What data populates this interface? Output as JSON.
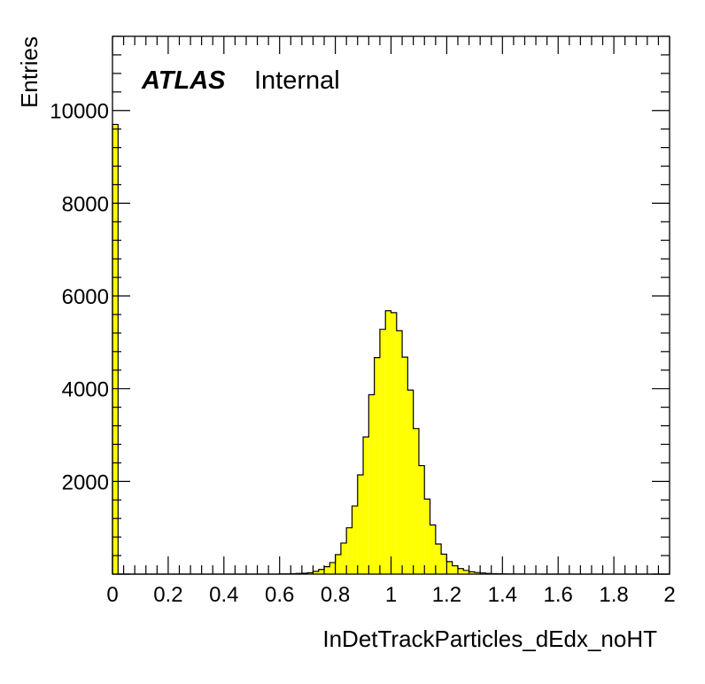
{
  "chart_data": {
    "type": "bar",
    "subtype": "histogram",
    "xlabel": "InDetTrackParticles_dEdx_noHT",
    "ylabel": "Entries",
    "experiment_label": "ATLAS",
    "status_label": "Internal",
    "xlim": [
      0,
      2
    ],
    "ylim": [
      0,
      11600
    ],
    "log_scale": false,
    "grid": false,
    "legend": "none",
    "bin_width": 0.02,
    "x_ticks": [
      0,
      0.2,
      0.4,
      0.6,
      0.8,
      1,
      1.2,
      1.4,
      1.6,
      1.8,
      2
    ],
    "x_tick_labels": [
      "0",
      "0.2",
      "0.4",
      "0.6",
      "0.8",
      "1",
      "1.2",
      "1.4",
      "1.6",
      "1.8",
      "2"
    ],
    "y_ticks": [
      2000,
      4000,
      6000,
      8000,
      10000
    ],
    "y_tick_labels": [
      "2000",
      "4000",
      "6000",
      "8000",
      "10000"
    ],
    "fill_color": "#ffff00",
    "line_color": "#000000",
    "bin_edges_low": [
      0.0,
      0.02,
      0.04,
      0.06,
      0.08,
      0.1,
      0.12,
      0.14,
      0.16,
      0.18,
      0.2,
      0.22,
      0.24,
      0.26,
      0.28,
      0.3,
      0.32,
      0.34,
      0.36,
      0.38,
      0.4,
      0.42,
      0.44,
      0.46,
      0.48,
      0.5,
      0.52,
      0.54,
      0.56,
      0.58,
      0.6,
      0.62,
      0.64,
      0.66,
      0.68,
      0.7,
      0.72,
      0.74,
      0.76,
      0.78,
      0.8,
      0.82,
      0.84,
      0.86,
      0.88,
      0.9,
      0.92,
      0.94,
      0.96,
      0.98,
      1.0,
      1.02,
      1.04,
      1.06,
      1.08,
      1.1,
      1.12,
      1.14,
      1.16,
      1.18,
      1.2,
      1.22,
      1.24,
      1.26,
      1.28,
      1.3,
      1.32,
      1.34,
      1.36,
      1.38,
      1.4,
      1.42,
      1.44,
      1.46,
      1.48,
      1.5,
      1.52,
      1.54,
      1.56,
      1.58,
      1.6,
      1.62,
      1.64,
      1.66,
      1.68,
      1.7,
      1.72,
      1.74,
      1.76,
      1.78,
      1.8,
      1.82,
      1.84,
      1.86,
      1.88,
      1.9,
      1.92,
      1.94,
      1.96,
      1.98
    ],
    "values": [
      9700,
      0,
      0,
      0,
      0,
      0,
      0,
      0,
      0,
      0,
      0,
      0,
      0,
      0,
      0,
      0,
      0,
      0,
      0,
      0,
      0,
      0,
      0,
      0,
      0,
      0,
      0,
      0,
      0,
      0,
      5,
      5,
      10,
      15,
      20,
      30,
      60,
      100,
      160,
      250,
      420,
      670,
      1000,
      1470,
      2140,
      2960,
      3870,
      4670,
      5280,
      5680,
      5640,
      5250,
      4680,
      3970,
      3140,
      2340,
      1620,
      1060,
      650,
      430,
      270,
      180,
      120,
      80,
      50,
      35,
      25,
      15,
      10,
      8,
      5,
      3,
      2,
      2,
      1,
      1,
      1,
      0,
      0,
      0,
      0,
      0,
      0,
      0,
      0,
      0,
      0,
      0,
      0,
      0,
      0,
      0,
      0,
      0,
      0,
      0,
      0,
      0,
      0,
      0
    ]
  }
}
